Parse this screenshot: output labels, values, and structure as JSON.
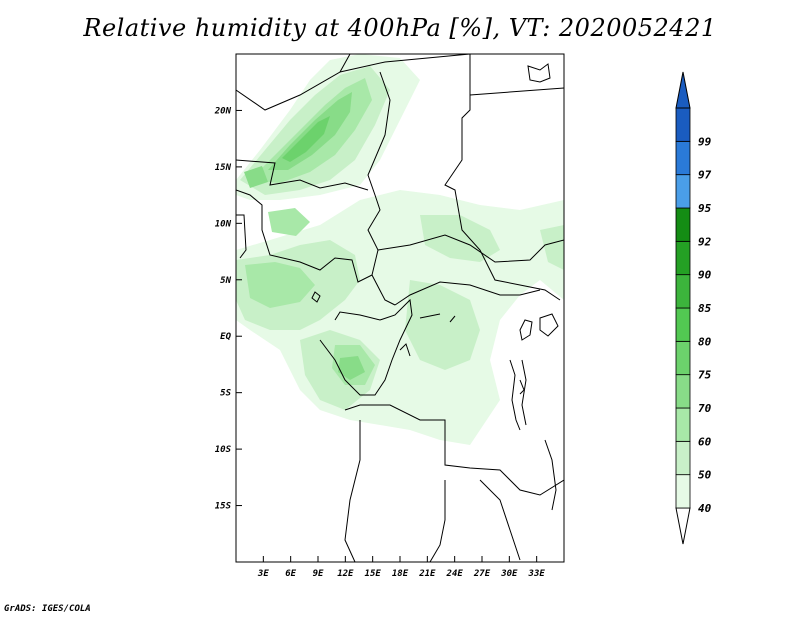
{
  "title": "Relative humidity at 400hPa [%], VT: 2020052421",
  "credit": "GrADS: IGES/COLA",
  "map": {
    "region": "Central Africa",
    "lon_range": [
      0,
      36
    ],
    "lat_range": [
      -20,
      25
    ],
    "lat_ticks": [
      {
        "value": 20,
        "label": "20N"
      },
      {
        "value": 15,
        "label": "15N"
      },
      {
        "value": 10,
        "label": "10N"
      },
      {
        "value": 5,
        "label": "5N"
      },
      {
        "value": 0,
        "label": "EQ"
      },
      {
        "value": -5,
        "label": "5S"
      },
      {
        "value": -10,
        "label": "10S"
      },
      {
        "value": -15,
        "label": "15S"
      }
    ],
    "lon_ticks": [
      {
        "value": 3,
        "label": "3E"
      },
      {
        "value": 6,
        "label": "6E"
      },
      {
        "value": 9,
        "label": "9E"
      },
      {
        "value": 12,
        "label": "12E"
      },
      {
        "value": 15,
        "label": "15E"
      },
      {
        "value": 18,
        "label": "18E"
      },
      {
        "value": 21,
        "label": "21E"
      },
      {
        "value": 24,
        "label": "24E"
      },
      {
        "value": 27,
        "label": "27E"
      },
      {
        "value": 30,
        "label": "30E"
      },
      {
        "value": 33,
        "label": "33E"
      }
    ]
  },
  "colorbar": {
    "levels": [
      {
        "label": "40",
        "color": "#e6fae6"
      },
      {
        "label": "50",
        "color": "#c8f0c8"
      },
      {
        "label": "60",
        "color": "#a8e8a8"
      },
      {
        "label": "70",
        "color": "#88dc88"
      },
      {
        "label": "75",
        "color": "#6cd26c"
      },
      {
        "label": "80",
        "color": "#52c852"
      },
      {
        "label": "85",
        "color": "#3cb43c"
      },
      {
        "label": "90",
        "color": "#24a024"
      },
      {
        "label": "92",
        "color": "#148c14"
      },
      {
        "label": "95",
        "color": "#4a9ee8"
      },
      {
        "label": "97",
        "color": "#2a7ad8"
      },
      {
        "label": "99",
        "color": "#1a5cc0"
      }
    ],
    "colors": {
      "min_triangle": "#ffffff",
      "max_triangle": "#1a5cc0"
    }
  },
  "field_colors": {
    "c40": "#e6fae6",
    "c50": "#c8f0c8",
    "c60": "#a8e8a8",
    "c70": "#88dc88",
    "c75": "#6cd26c"
  }
}
